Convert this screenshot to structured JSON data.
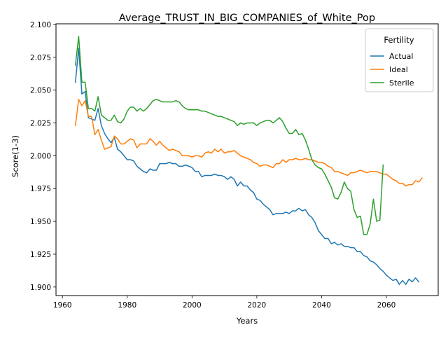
{
  "chart_data": {
    "type": "line",
    "title": "Average_TRUST_IN_BIG_COMPANIES_of_White_Pop",
    "xlabel": "Years",
    "ylabel": "Score(1-3)",
    "xlim": [
      1958,
      2076
    ],
    "ylim": [
      1.8935,
      2.1005
    ],
    "xticks": [
      1960,
      1980,
      2000,
      2020,
      2040,
      2060
    ],
    "yticks": [
      1.9,
      1.925,
      1.95,
      1.975,
      2.0,
      2.025,
      2.05,
      2.075,
      2.1
    ],
    "ytick_labels": [
      "1.900",
      "1.925",
      "1.950",
      "1.975",
      "2.000",
      "2.025",
      "2.050",
      "2.075",
      "2.100"
    ],
    "grid": false,
    "legend": {
      "title": "Fertility",
      "placement": "top-right"
    },
    "series": [
      {
        "name": "Actual",
        "color": "#1f77b4",
        "points": [
          [
            1964,
            2.056
          ],
          [
            1965,
            2.082
          ],
          [
            1966,
            2.047
          ],
          [
            1967,
            2.049
          ],
          [
            1968,
            2.029
          ],
          [
            1969,
            2.028
          ],
          [
            1970,
            2.027
          ],
          [
            1971,
            2.036
          ],
          [
            1972,
            2.023
          ],
          [
            1973,
            2.017
          ],
          [
            1974,
            2.013
          ],
          [
            1975,
            2.01
          ],
          [
            1976,
            2.014
          ],
          [
            1977,
            2.005
          ],
          [
            1978,
            2.003
          ],
          [
            1979,
            2.0
          ],
          [
            1980,
            1.997
          ],
          [
            1981,
            1.997
          ],
          [
            1982,
            1.996
          ],
          [
            1983,
            1.992
          ],
          [
            1984,
            1.99
          ],
          [
            1985,
            1.988
          ],
          [
            1986,
            1.987
          ],
          [
            1987,
            1.99
          ],
          [
            1988,
            1.989
          ],
          [
            1989,
            1.989
          ],
          [
            1990,
            1.994
          ],
          [
            1991,
            1.994
          ],
          [
            1992,
            1.994
          ],
          [
            1993,
            1.995
          ],
          [
            1994,
            1.994
          ],
          [
            1995,
            1.994
          ],
          [
            1996,
            1.992
          ],
          [
            1997,
            1.992
          ],
          [
            1998,
            1.993
          ],
          [
            1999,
            1.992
          ],
          [
            2000,
            1.991
          ],
          [
            2001,
            1.988
          ],
          [
            2002,
            1.988
          ],
          [
            2003,
            1.984
          ],
          [
            2004,
            1.985
          ],
          [
            2005,
            1.985
          ],
          [
            2006,
            1.985
          ],
          [
            2007,
            1.986
          ],
          [
            2008,
            1.985
          ],
          [
            2009,
            1.985
          ],
          [
            2010,
            1.984
          ],
          [
            2011,
            1.982
          ],
          [
            2012,
            1.984
          ],
          [
            2013,
            1.982
          ],
          [
            2014,
            1.977
          ],
          [
            2015,
            1.98
          ],
          [
            2016,
            1.977
          ],
          [
            2017,
            1.977
          ],
          [
            2018,
            1.974
          ],
          [
            2019,
            1.972
          ],
          [
            2020,
            1.967
          ],
          [
            2021,
            1.966
          ],
          [
            2022,
            1.963
          ],
          [
            2023,
            1.961
          ],
          [
            2024,
            1.959
          ],
          [
            2025,
            1.955
          ],
          [
            2026,
            1.956
          ],
          [
            2027,
            1.956
          ],
          [
            2028,
            1.956
          ],
          [
            2029,
            1.957
          ],
          [
            2030,
            1.956
          ],
          [
            2031,
            1.958
          ],
          [
            2032,
            1.958
          ],
          [
            2033,
            1.96
          ],
          [
            2034,
            1.958
          ],
          [
            2035,
            1.959
          ],
          [
            2036,
            1.955
          ],
          [
            2037,
            1.953
          ],
          [
            2038,
            1.949
          ],
          [
            2039,
            1.943
          ],
          [
            2040,
            1.94
          ],
          [
            2041,
            1.937
          ],
          [
            2042,
            1.937
          ],
          [
            2043,
            1.933
          ],
          [
            2044,
            1.934
          ],
          [
            2045,
            1.932
          ],
          [
            2046,
            1.933
          ],
          [
            2047,
            1.931
          ],
          [
            2048,
            1.931
          ],
          [
            2049,
            1.93
          ],
          [
            2050,
            1.93
          ],
          [
            2051,
            1.927
          ],
          [
            2052,
            1.927
          ],
          [
            2053,
            1.924
          ],
          [
            2054,
            1.923
          ],
          [
            2055,
            1.92
          ],
          [
            2056,
            1.919
          ],
          [
            2057,
            1.917
          ],
          [
            2058,
            1.914
          ],
          [
            2059,
            1.912
          ],
          [
            2060,
            1.909
          ],
          [
            2061,
            1.907
          ],
          [
            2062,
            1.905
          ],
          [
            2063,
            1.906
          ],
          [
            2064,
            1.902
          ],
          [
            2065,
            1.905
          ],
          [
            2066,
            1.902
          ],
          [
            2067,
            1.906
          ],
          [
            2068,
            1.904
          ],
          [
            2069,
            1.907
          ],
          [
            2070,
            1.904
          ]
        ]
      },
      {
        "name": "Ideal",
        "color": "#ff7f0e",
        "points": [
          [
            1964,
            2.023
          ],
          [
            1965,
            2.043
          ],
          [
            1966,
            2.038
          ],
          [
            1967,
            2.042
          ],
          [
            1968,
            2.03
          ],
          [
            1969,
            2.03
          ],
          [
            1970,
            2.016
          ],
          [
            1971,
            2.02
          ],
          [
            1972,
            2.012
          ],
          [
            1973,
            2.005
          ],
          [
            1974,
            2.006
          ],
          [
            1975,
            2.007
          ],
          [
            1976,
            2.015
          ],
          [
            1977,
            2.013
          ],
          [
            1978,
            2.009
          ],
          [
            1979,
            2.009
          ],
          [
            1980,
            2.011
          ],
          [
            1981,
            2.013
          ],
          [
            1982,
            2.012
          ],
          [
            1983,
            2.006
          ],
          [
            1984,
            2.009
          ],
          [
            1985,
            2.009
          ],
          [
            1986,
            2.009
          ],
          [
            1987,
            2.013
          ],
          [
            1988,
            2.011
          ],
          [
            1989,
            2.008
          ],
          [
            1990,
            2.011
          ],
          [
            1991,
            2.008
          ],
          [
            1992,
            2.006
          ],
          [
            1993,
            2.004
          ],
          [
            1994,
            2.005
          ],
          [
            1995,
            2.004
          ],
          [
            1996,
            2.003
          ],
          [
            1997,
            2.0
          ],
          [
            1998,
            2.0
          ],
          [
            1999,
            2.0
          ],
          [
            2000,
            1.999
          ],
          [
            2001,
            2.0
          ],
          [
            2002,
            2.0
          ],
          [
            2003,
            1.999
          ],
          [
            2004,
            2.002
          ],
          [
            2005,
            2.003
          ],
          [
            2006,
            2.002
          ],
          [
            2007,
            2.005
          ],
          [
            2008,
            2.003
          ],
          [
            2009,
            2.005
          ],
          [
            2010,
            2.002
          ],
          [
            2011,
            2.003
          ],
          [
            2012,
            2.003
          ],
          [
            2013,
            2.004
          ],
          [
            2014,
            2.002
          ],
          [
            2015,
            2.0
          ],
          [
            2016,
            1.999
          ],
          [
            2017,
            1.998
          ],
          [
            2018,
            1.997
          ],
          [
            2019,
            1.995
          ],
          [
            2020,
            1.994
          ],
          [
            2021,
            1.992
          ],
          [
            2022,
            1.993
          ],
          [
            2023,
            1.993
          ],
          [
            2024,
            1.992
          ],
          [
            2025,
            1.991
          ],
          [
            2026,
            1.994
          ],
          [
            2027,
            1.994
          ],
          [
            2028,
            1.997
          ],
          [
            2029,
            1.995
          ],
          [
            2030,
            1.997
          ],
          [
            2031,
            1.997
          ],
          [
            2032,
            1.998
          ],
          [
            2033,
            1.997
          ],
          [
            2034,
            1.997
          ],
          [
            2035,
            1.998
          ],
          [
            2036,
            1.997
          ],
          [
            2037,
            1.997
          ],
          [
            2038,
            1.996
          ],
          [
            2039,
            1.995
          ],
          [
            2040,
            1.995
          ],
          [
            2041,
            1.994
          ],
          [
            2042,
            1.992
          ],
          [
            2043,
            1.991
          ],
          [
            2044,
            1.988
          ],
          [
            2045,
            1.988
          ],
          [
            2046,
            1.987
          ],
          [
            2047,
            1.986
          ],
          [
            2048,
            1.985
          ],
          [
            2049,
            1.987
          ],
          [
            2050,
            1.987
          ],
          [
            2051,
            1.988
          ],
          [
            2052,
            1.989
          ],
          [
            2053,
            1.988
          ],
          [
            2054,
            1.987
          ],
          [
            2055,
            1.988
          ],
          [
            2056,
            1.988
          ],
          [
            2057,
            1.988
          ],
          [
            2058,
            1.987
          ],
          [
            2059,
            1.986
          ],
          [
            2060,
            1.986
          ],
          [
            2061,
            1.984
          ],
          [
            2062,
            1.982
          ],
          [
            2063,
            1.981
          ],
          [
            2064,
            1.979
          ],
          [
            2065,
            1.979
          ],
          [
            2066,
            1.977
          ],
          [
            2067,
            1.978
          ],
          [
            2068,
            1.978
          ],
          [
            2069,
            1.981
          ],
          [
            2070,
            1.98
          ],
          [
            2071,
            1.983
          ]
        ]
      },
      {
        "name": "Sterile",
        "color": "#2ca02c",
        "points": [
          [
            1964,
            2.069
          ],
          [
            1965,
            2.091
          ],
          [
            1966,
            2.056
          ],
          [
            1967,
            2.056
          ],
          [
            1968,
            2.036
          ],
          [
            1969,
            2.036
          ],
          [
            1970,
            2.034
          ],
          [
            1971,
            2.045
          ],
          [
            1972,
            2.031
          ],
          [
            1973,
            2.029
          ],
          [
            1974,
            2.027
          ],
          [
            1975,
            2.027
          ],
          [
            1976,
            2.031
          ],
          [
            1977,
            2.026
          ],
          [
            1978,
            2.025
          ],
          [
            1979,
            2.028
          ],
          [
            1980,
            2.034
          ],
          [
            1981,
            2.037
          ],
          [
            1982,
            2.037
          ],
          [
            1983,
            2.034
          ],
          [
            1984,
            2.036
          ],
          [
            1985,
            2.034
          ],
          [
            1986,
            2.036
          ],
          [
            1987,
            2.039
          ],
          [
            1988,
            2.042
          ],
          [
            1989,
            2.043
          ],
          [
            1990,
            2.042
          ],
          [
            1991,
            2.041
          ],
          [
            1992,
            2.041
          ],
          [
            1993,
            2.041
          ],
          [
            1994,
            2.041
          ],
          [
            1995,
            2.042
          ],
          [
            1996,
            2.041
          ],
          [
            1997,
            2.038
          ],
          [
            1998,
            2.036
          ],
          [
            1999,
            2.035
          ],
          [
            2000,
            2.035
          ],
          [
            2001,
            2.035
          ],
          [
            2002,
            2.035
          ],
          [
            2003,
            2.034
          ],
          [
            2004,
            2.034
          ],
          [
            2005,
            2.033
          ],
          [
            2006,
            2.032
          ],
          [
            2007,
            2.031
          ],
          [
            2008,
            2.03
          ],
          [
            2009,
            2.03
          ],
          [
            2010,
            2.029
          ],
          [
            2011,
            2.028
          ],
          [
            2012,
            2.027
          ],
          [
            2013,
            2.026
          ],
          [
            2014,
            2.023
          ],
          [
            2015,
            2.025
          ],
          [
            2016,
            2.024
          ],
          [
            2017,
            2.025
          ],
          [
            2018,
            2.025
          ],
          [
            2019,
            2.025
          ],
          [
            2020,
            2.023
          ],
          [
            2021,
            2.025
          ],
          [
            2022,
            2.026
          ],
          [
            2023,
            2.027
          ],
          [
            2024,
            2.027
          ],
          [
            2025,
            2.025
          ],
          [
            2026,
            2.027
          ],
          [
            2027,
            2.029
          ],
          [
            2028,
            2.026
          ],
          [
            2029,
            2.021
          ],
          [
            2030,
            2.017
          ],
          [
            2031,
            2.017
          ],
          [
            2032,
            2.02
          ],
          [
            2033,
            2.016
          ],
          [
            2034,
            2.017
          ],
          [
            2035,
            2.012
          ],
          [
            2036,
            2.005
          ],
          [
            2037,
            1.997
          ],
          [
            2038,
            1.993
          ],
          [
            2039,
            1.991
          ],
          [
            2040,
            1.99
          ],
          [
            2041,
            1.986
          ],
          [
            2042,
            1.981
          ],
          [
            2043,
            1.976
          ],
          [
            2044,
            1.968
          ],
          [
            2045,
            1.967
          ],
          [
            2046,
            1.972
          ],
          [
            2047,
            1.98
          ],
          [
            2048,
            1.975
          ],
          [
            2049,
            1.973
          ],
          [
            2050,
            1.959
          ],
          [
            2051,
            1.953
          ],
          [
            2052,
            1.954
          ],
          [
            2053,
            1.94
          ],
          [
            2054,
            1.94
          ],
          [
            2055,
            1.948
          ],
          [
            2056,
            1.967
          ],
          [
            2057,
            1.95
          ],
          [
            2058,
            1.951
          ],
          [
            2059,
            1.993
          ]
        ]
      }
    ]
  }
}
